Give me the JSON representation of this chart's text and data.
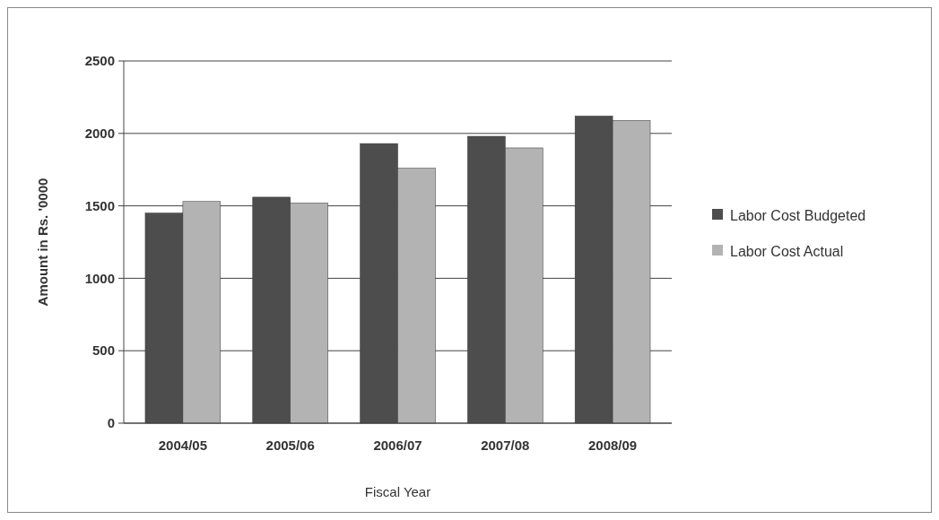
{
  "chart_data": {
    "type": "bar",
    "xlabel": "Fiscal Year",
    "ylabel": "Amount in Rs. '0000",
    "categories": [
      "2004/05",
      "2005/06",
      "2006/07",
      "2007/08",
      "2008/09"
    ],
    "series": [
      {
        "name": "Labor Cost Budgeted",
        "color": "#4d4d4d",
        "values": [
          1450,
          1560,
          1930,
          1980,
          2120
        ]
      },
      {
        "name": "Labor Cost Actual",
        "color": "#b3b3b3",
        "values": [
          1530,
          1520,
          1760,
          1900,
          2090
        ]
      }
    ],
    "ylim": [
      0,
      2500
    ],
    "yticks": [
      0,
      500,
      1000,
      1500,
      2000,
      2500
    ],
    "grid": "y",
    "legend": "right"
  }
}
